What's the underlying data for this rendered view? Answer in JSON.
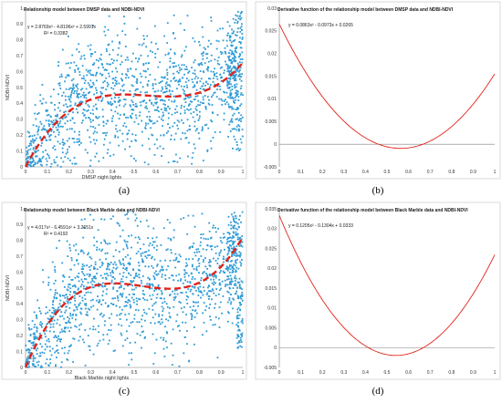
{
  "charts": [
    {
      "id": "a",
      "type": "scatter",
      "title": "Relationship model between DMSP data and NDBI-NDVI",
      "equation_lines": [
        "y = 2.8769x³ - 4.8196x² + 2.5991x",
        "R² = 0.3382"
      ],
      "xlabel": "DMSP night lights",
      "ylabel": "NDBI-NDVI",
      "xlim": [
        0,
        1
      ],
      "ylim": [
        0,
        1
      ],
      "xticks": [
        "0",
        "0.1",
        "0.2",
        "0.3",
        "0.4",
        "0.5",
        "0.6",
        "0.7",
        "0.8",
        "0.9",
        "1"
      ],
      "yticks": [
        "0",
        "0.1",
        "0.2",
        "0.3",
        "0.4",
        "0.5",
        "0.6",
        "0.7",
        "0.8",
        "0.9",
        "1"
      ],
      "coefficients": [
        2.8769,
        -4.8196,
        2.5991,
        0
      ],
      "caption": "(a)"
    },
    {
      "id": "b",
      "type": "line",
      "title": "Derivative function of the relationship model between DMSP data and NDBI-NDVI",
      "equation_lines": [
        "y = 0.0863x² - 0.0973x + 0.0265"
      ],
      "xlabel": "",
      "ylabel": "",
      "xlim": [
        0,
        1
      ],
      "ylim": [
        -0.005,
        0.03
      ],
      "xticks": [
        "0",
        "0.1",
        "0.2",
        "0.3",
        "0.4",
        "0.5",
        "0.6",
        "0.7",
        "0.8",
        "0.9",
        "1"
      ],
      "yticks": [
        "-0.005",
        "0",
        "0.005",
        "0.01",
        "0.015",
        "0.02",
        "0.025",
        "0.03"
      ],
      "coefficients": [
        0.0863,
        -0.0973,
        0.0265
      ],
      "caption": "(b)"
    },
    {
      "id": "c",
      "type": "scatter",
      "title": "Relationship model between Black Marble data and NDBI-NDVI",
      "equation_lines": [
        "y = 4.017x³ - 6.4591x² + 3.2651x",
        "R² = 0.4192"
      ],
      "xlabel": "Black Marble night lights",
      "ylabel": "NDBI-NDVI",
      "xlim": [
        0,
        1
      ],
      "ylim": [
        0,
        1
      ],
      "xticks": [
        "0",
        "0.1",
        "0.2",
        "0.3",
        "0.4",
        "0.5",
        "0.6",
        "0.7",
        "0.8",
        "0.9",
        "1"
      ],
      "yticks": [
        "0",
        "0.1",
        "0.2",
        "0.3",
        "0.4",
        "0.5",
        "0.6",
        "0.7",
        "0.8",
        "0.9",
        "1"
      ],
      "coefficients": [
        4.017,
        -6.4591,
        3.2651,
        0
      ],
      "caption": "(c)"
    },
    {
      "id": "d",
      "type": "line",
      "title": "Derivative function of the relationship model between Black Marble data and NDBI-NDVI",
      "equation_lines": [
        "y = 0.1205x² - 0.1304x + 0.0333"
      ],
      "xlabel": "",
      "ylabel": "",
      "xlim": [
        0,
        1
      ],
      "ylim": [
        -0.005,
        0.035
      ],
      "xticks": [
        "0",
        "0.1",
        "0.2",
        "0.3",
        "0.4",
        "0.5",
        "0.6",
        "0.7",
        "0.8",
        "0.9",
        "1"
      ],
      "yticks": [
        "-0.005",
        "0",
        "0.005",
        "0.01",
        "0.015",
        "0.02",
        "0.025",
        "0.03",
        "0.035"
      ],
      "coefficients": [
        0.1205,
        -0.1304,
        0.0333
      ],
      "caption": "(d)"
    }
  ],
  "colors": {
    "points": "#2e9bd6",
    "fit_curve": "#e2231a",
    "derivative_curve": "#e2231a",
    "axis": "#7f7f7f",
    "zero_line": "#7f7f7f"
  }
}
